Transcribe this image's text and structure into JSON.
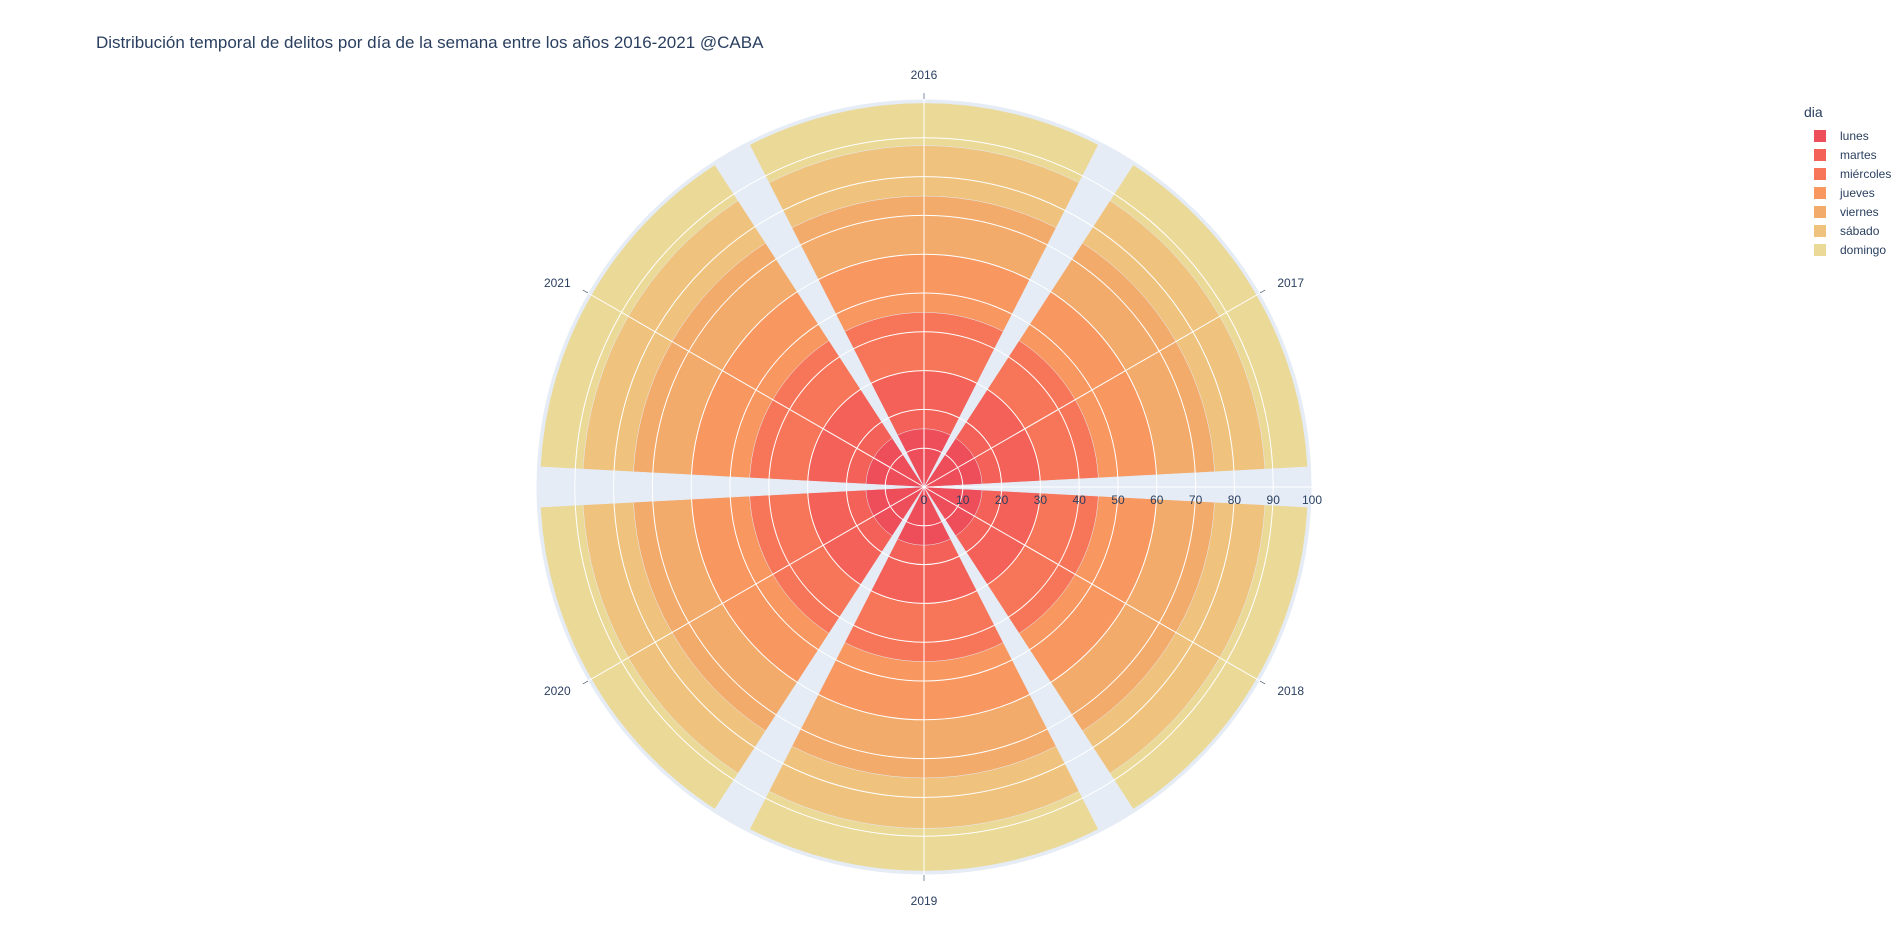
{
  "chart_data": {
    "type": "barpolar",
    "title": "Distribución temporal de delitos por día de la semana entre los años 2016-2021 @CABA",
    "categories": [
      "2016",
      "2017",
      "2018",
      "2019",
      "2020",
      "2021"
    ],
    "radial_axis": {
      "range": [
        0,
        100
      ],
      "ticks": [
        "0",
        "10",
        "20",
        "30",
        "40",
        "50",
        "60",
        "70",
        "80",
        "90",
        "100"
      ]
    },
    "angular_direction": "clockwise",
    "angular_rotation_deg": 90,
    "legend": {
      "title": "dia",
      "placement": "top-right"
    },
    "series": [
      {
        "name": "lunes",
        "color": "#ee4d5a",
        "values": [
          15,
          15,
          15,
          15,
          15,
          15
        ]
      },
      {
        "name": "martes",
        "color": "#f36158",
        "values": [
          30,
          30,
          30,
          30,
          30,
          30
        ]
      },
      {
        "name": "miércoles",
        "color": "#f7765a",
        "values": [
          45,
          45,
          45,
          45,
          45,
          45
        ]
      },
      {
        "name": "jueves",
        "color": "#f89760",
        "values": [
          60,
          60,
          60,
          60,
          60,
          60
        ]
      },
      {
        "name": "viernes",
        "color": "#f3ab6b",
        "values": [
          75,
          75,
          75,
          75,
          75,
          75
        ]
      },
      {
        "name": "sábado",
        "color": "#efc37e",
        "values": [
          88,
          88,
          88,
          88,
          88,
          88
        ]
      },
      {
        "name": "domingo",
        "color": "#ebd998",
        "values": [
          99,
          99,
          99,
          99,
          99,
          99
        ]
      }
    ]
  }
}
